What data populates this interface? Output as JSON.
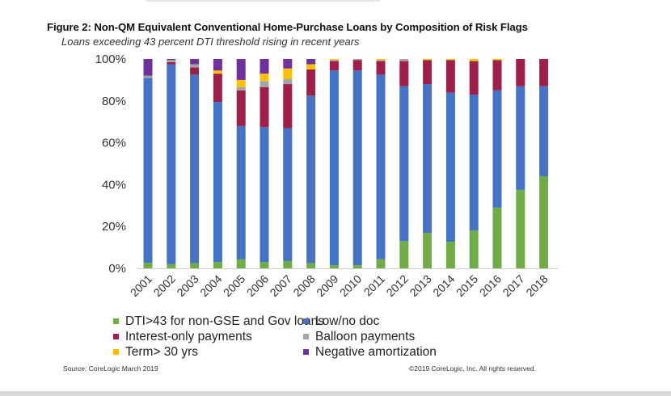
{
  "chart_data": {
    "type": "bar",
    "stacked": true,
    "title": "Figure 2: Non-QM Equivalent Conventional Home-Purchase Loans by Composition of Risk Flags",
    "subtitle": "Loans exceeding 43 percent DTI threshold rising in recent years",
    "xlabel": "",
    "ylabel": "",
    "ylim": [
      0,
      100
    ],
    "y_ticks": [
      "0%",
      "20%",
      "40%",
      "60%",
      "80%",
      "100%"
    ],
    "y_tick_values": [
      0,
      20,
      40,
      60,
      80,
      100
    ],
    "grid": false,
    "legend_position": "bottom",
    "categories": [
      "2001",
      "2002",
      "2003",
      "2004",
      "2005",
      "2006",
      "2007",
      "2008",
      "2009",
      "2010",
      "2011",
      "2012",
      "2013",
      "2014",
      "2015",
      "2016",
      "2017",
      "2018"
    ],
    "series": [
      {
        "name": "DTI>43 for non-GSE and Gov loans",
        "color": "#70ad47",
        "values": [
          2.7,
          2.0,
          2.5,
          3.0,
          4.3,
          3.0,
          3.5,
          2.5,
          1.5,
          1.5,
          4.3,
          13.0,
          17.0,
          12.7,
          18.0,
          29.0,
          37.5,
          44.0
        ]
      },
      {
        "name": "Low/no doc",
        "color": "#4472c4",
        "values": [
          88.3,
          95.5,
          90.0,
          76.5,
          63.7,
          64.5,
          63.5,
          80.0,
          93.0,
          93.0,
          88.2,
          74.0,
          71.0,
          71.3,
          65.0,
          56.0,
          49.5,
          43.0
        ]
      },
      {
        "name": "Interest-only payments",
        "color": "#9e1f4a",
        "values": [
          0.0,
          1.0,
          3.5,
          13.5,
          17.0,
          19.0,
          21.0,
          12.5,
          4.5,
          5.0,
          6.5,
          12.0,
          11.5,
          15.5,
          16.0,
          14.5,
          13.0,
          13.0
        ]
      },
      {
        "name": "Balloon payments",
        "color": "#a5a5a5",
        "values": [
          1.0,
          1.0,
          1.5,
          0.0,
          1.5,
          3.0,
          2.5,
          0.0,
          0.5,
          0.5,
          0.5,
          1.0,
          0.0,
          0.0,
          0.0,
          0.0,
          0.0,
          0.0
        ]
      },
      {
        "name": "Term> 30 yrs",
        "color": "#ffc000",
        "values": [
          0.0,
          0.0,
          0.0,
          1.5,
          3.5,
          3.5,
          5.0,
          2.5,
          0.5,
          0.0,
          0.5,
          0.0,
          0.5,
          0.5,
          1.0,
          0.5,
          0.0,
          0.0
        ]
      },
      {
        "name": "Negative amortization",
        "color": "#7030a0",
        "values": [
          8.0,
          0.5,
          2.5,
          5.5,
          10.0,
          7.0,
          4.5,
          2.5,
          0.0,
          0.0,
          0.0,
          0.0,
          0.0,
          0.0,
          0.0,
          0.0,
          0.0,
          0.0
        ]
      }
    ],
    "legend_order": [
      "DTI>43 for non-GSE and Gov loans",
      "Low/no doc",
      "Interest-only payments",
      "Balloon payments",
      "Term> 30 yrs",
      "Negative amortization"
    ]
  },
  "footer": {
    "source": "Source: CoreLogic March 2019",
    "copyright": "©2019 CoreLogic, Inc. All rights reserved."
  }
}
